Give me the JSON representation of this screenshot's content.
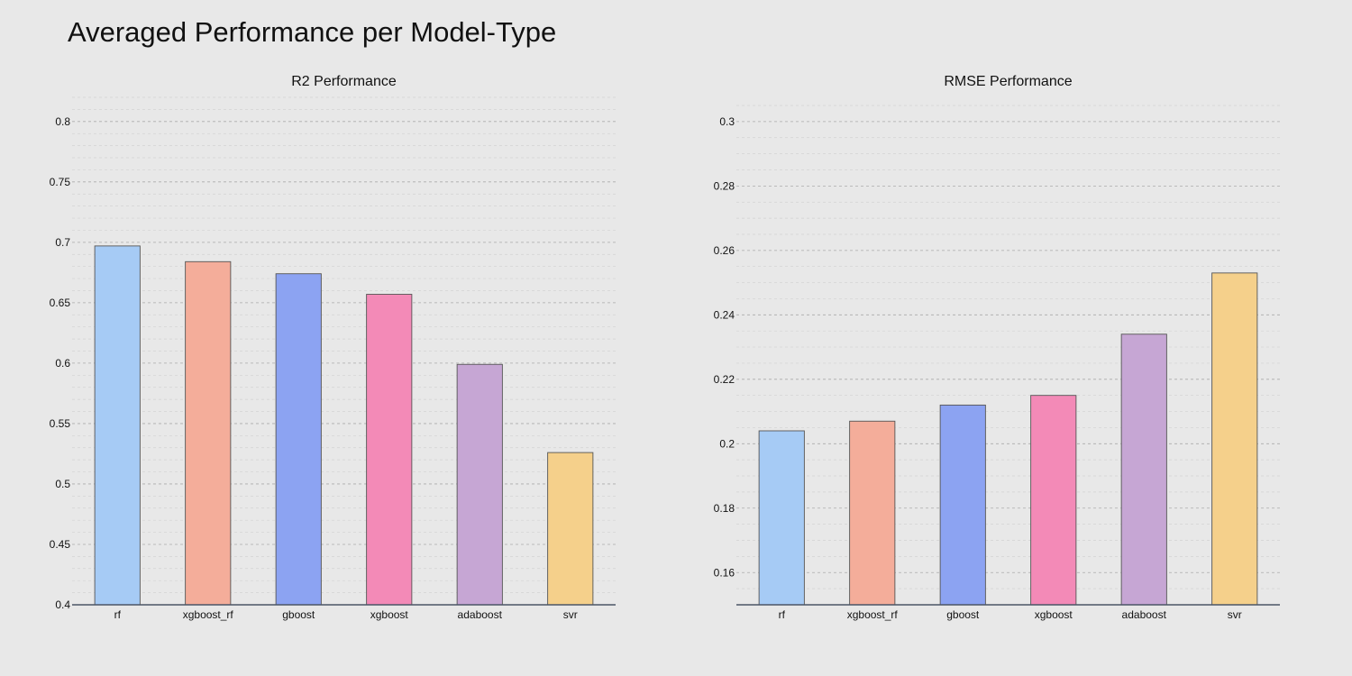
{
  "page": {
    "title": "Averaged Performance per Model-Type"
  },
  "chart_data": [
    {
      "type": "bar",
      "title": "R2 Performance",
      "xlabel": "",
      "ylabel": "",
      "categories": [
        "rf",
        "xgboost_rf",
        "gboost",
        "xgboost",
        "adaboost",
        "svr"
      ],
      "values": [
        0.697,
        0.684,
        0.674,
        0.657,
        0.599,
        0.526
      ],
      "colors": [
        "#a6cbf5",
        "#f4ad9a",
        "#8ca3f2",
        "#f38ab7",
        "#c6a6d4",
        "#f5d08b"
      ],
      "ylim": [
        0.4,
        0.82
      ],
      "yticks": [
        0.4,
        0.45,
        0.5,
        0.55,
        0.6,
        0.65,
        0.7,
        0.75,
        0.8
      ],
      "ytick_labels": [
        "0.4",
        "0.45",
        "0.5",
        "0.55",
        "0.6",
        "0.65",
        "0.7",
        "0.75",
        "0.8"
      ],
      "minor_step": 0.01,
      "grid": true,
      "legend": "none"
    },
    {
      "type": "bar",
      "title": "RMSE Performance",
      "xlabel": "",
      "ylabel": "",
      "categories": [
        "rf",
        "xgboost_rf",
        "gboost",
        "xgboost",
        "adaboost",
        "svr"
      ],
      "values": [
        0.204,
        0.207,
        0.212,
        0.215,
        0.234,
        0.253
      ],
      "colors": [
        "#a6cbf5",
        "#f4ad9a",
        "#8ca3f2",
        "#f38ab7",
        "#c6a6d4",
        "#f5d08b"
      ],
      "ylim": [
        0.15,
        0.305
      ],
      "yticks": [
        0.16,
        0.18,
        0.2,
        0.22,
        0.24,
        0.26,
        0.28,
        0.3
      ],
      "ytick_labels": [
        "0.16",
        "0.18",
        "0.2",
        "0.22",
        "0.24",
        "0.26",
        "0.28",
        "0.3"
      ],
      "minor_step": 0.005,
      "grid": true,
      "legend": "none"
    }
  ]
}
